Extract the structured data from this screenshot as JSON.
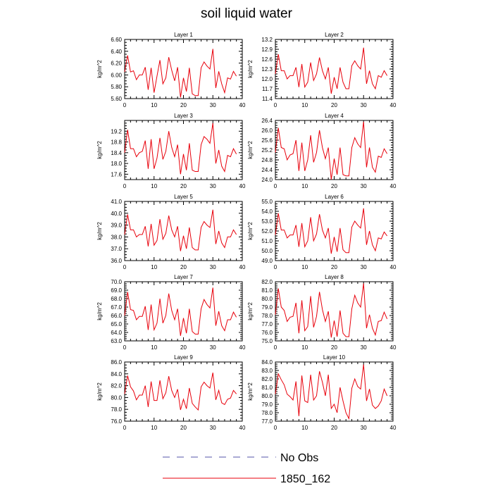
{
  "title": "soil liquid water",
  "legend": {
    "entries": [
      {
        "label": "No Obs",
        "color": "#5555aa",
        "style": "dashed"
      },
      {
        "label": "1850_162",
        "color": "#e8000b",
        "style": "solid"
      }
    ]
  },
  "colors": {
    "line": "#e8000b",
    "noobs": "#5555aa",
    "axis": "#000000"
  },
  "chart_data": [
    {
      "type": "line",
      "title": "Layer 1",
      "ylabel": "kg/m^2",
      "xlim": [
        0,
        40
      ],
      "ylim": [
        5.6,
        6.6
      ],
      "xticks": [
        0,
        10,
        20,
        30,
        40
      ],
      "yticks": [
        5.6,
        5.8,
        6.0,
        6.2,
        6.4,
        6.6
      ],
      "decimals": 2,
      "series": [
        {
          "values": [
            6.05,
            6.33,
            6.05,
            6.07,
            5.92,
            6.0,
            6.0,
            6.13,
            5.75,
            6.12,
            5.7,
            5.98,
            6.25,
            5.85,
            5.95,
            6.3,
            6.08,
            5.9,
            6.13,
            5.62,
            5.95,
            5.72,
            6.12,
            5.68,
            5.65,
            5.65,
            6.12,
            6.22,
            6.15,
            6.1,
            6.44,
            5.78,
            6.06,
            5.85,
            5.7,
            5.95,
            5.93,
            6.06,
            5.98
          ]
        }
      ]
    },
    {
      "type": "line",
      "title": "Layer 2",
      "ylabel": "kg/m^2",
      "xlim": [
        0,
        40
      ],
      "ylim": [
        11.4,
        13.2
      ],
      "xticks": [
        0,
        10,
        20,
        30,
        40
      ],
      "yticks": [
        11.4,
        11.7,
        12.0,
        12.3,
        12.6,
        12.9,
        13.2
      ],
      "decimals": 1,
      "series": [
        {
          "values": [
            12.15,
            12.75,
            12.25,
            12.25,
            12.0,
            12.1,
            12.1,
            12.35,
            11.75,
            12.45,
            11.75,
            11.9,
            12.5,
            11.95,
            12.15,
            12.65,
            12.25,
            12.0,
            12.35,
            11.55,
            12.05,
            11.7,
            12.35,
            11.9,
            11.7,
            11.7,
            12.4,
            12.55,
            12.4,
            12.3,
            12.95,
            11.85,
            12.25,
            11.85,
            11.7,
            12.1,
            12.05,
            12.25,
            12.1
          ]
        }
      ]
    },
    {
      "type": "line",
      "title": "Layer 3",
      "ylabel": "kg/m^2",
      "xlim": [
        0,
        40
      ],
      "ylim": [
        17.4,
        19.6
      ],
      "xticks": [
        0,
        10,
        20,
        30,
        40
      ],
      "yticks": [
        17.6,
        18.0,
        18.4,
        18.8,
        19.2
      ],
      "decimals": 1,
      "series": [
        {
          "values": [
            18.4,
            19.25,
            18.55,
            18.55,
            18.25,
            18.4,
            18.45,
            18.85,
            17.8,
            18.9,
            17.8,
            18.2,
            18.95,
            18.15,
            18.45,
            19.2,
            18.6,
            18.25,
            18.7,
            17.6,
            18.35,
            17.75,
            18.75,
            17.75,
            17.7,
            17.7,
            18.7,
            19.0,
            18.9,
            18.75,
            19.5,
            18.0,
            18.5,
            17.9,
            17.7,
            18.3,
            18.25,
            18.55,
            18.35
          ]
        }
      ]
    },
    {
      "type": "line",
      "title": "Layer 4",
      "ylabel": "kg/m^2",
      "xlim": [
        0,
        40
      ],
      "ylim": [
        24.0,
        26.4
      ],
      "xticks": [
        0,
        10,
        20,
        30,
        40
      ],
      "yticks": [
        24.0,
        24.4,
        24.8,
        25.2,
        25.6,
        26.0,
        26.4
      ],
      "decimals": 1,
      "series": [
        {
          "values": [
            25.1,
            26.1,
            25.3,
            25.25,
            24.8,
            25.0,
            25.05,
            25.6,
            24.35,
            25.5,
            24.35,
            24.8,
            25.8,
            24.7,
            25.1,
            26.0,
            25.3,
            24.85,
            25.3,
            24.0,
            24.85,
            24.2,
            25.3,
            24.2,
            24.15,
            24.15,
            25.3,
            25.7,
            25.45,
            25.3,
            26.35,
            24.5,
            25.3,
            24.5,
            24.3,
            24.95,
            24.9,
            25.25,
            25.05
          ]
        }
      ]
    },
    {
      "type": "line",
      "title": "Layer 5",
      "ylabel": "kg/m^2",
      "xlim": [
        0,
        40
      ],
      "ylim": [
        36.0,
        41.0
      ],
      "xticks": [
        0,
        10,
        20,
        30,
        40
      ],
      "yticks": [
        36.0,
        37.0,
        38.0,
        39.0,
        40.0,
        41.0
      ],
      "decimals": 1,
      "series": [
        {
          "values": [
            38.2,
            39.9,
            38.6,
            38.6,
            38.0,
            38.2,
            38.2,
            38.9,
            37.2,
            39.1,
            37.3,
            37.7,
            39.5,
            37.8,
            38.3,
            39.8,
            38.6,
            38.0,
            38.9,
            36.8,
            38.1,
            37.0,
            38.8,
            37.1,
            36.9,
            36.9,
            38.8,
            39.3,
            39.0,
            38.8,
            40.3,
            37.4,
            38.5,
            37.5,
            37.1,
            38.0,
            38.0,
            38.6,
            38.2
          ]
        }
      ]
    },
    {
      "type": "line",
      "title": "Layer 6",
      "ylabel": "kg/m^2",
      "xlim": [
        0,
        40
      ],
      "ylim": [
        49.0,
        55.0
      ],
      "xticks": [
        0,
        10,
        20,
        30,
        40
      ],
      "yticks": [
        49.0,
        50.0,
        51.0,
        52.0,
        53.0,
        54.0,
        55.0
      ],
      "decimals": 1,
      "series": [
        {
          "values": [
            51.6,
            53.8,
            52.1,
            52.1,
            51.3,
            51.6,
            51.6,
            52.6,
            50.4,
            52.8,
            50.4,
            51.0,
            53.4,
            51.0,
            51.7,
            53.7,
            52.1,
            51.3,
            52.3,
            49.7,
            51.4,
            49.9,
            52.3,
            50.1,
            49.8,
            49.8,
            52.4,
            53.0,
            52.6,
            52.3,
            54.3,
            50.6,
            52.0,
            50.6,
            50.0,
            51.3,
            51.2,
            51.9,
            51.5
          ]
        }
      ]
    },
    {
      "type": "line",
      "title": "Layer 7",
      "ylabel": "kg/m^2",
      "xlim": [
        0,
        40
      ],
      "ylim": [
        63.0,
        70.0
      ],
      "xticks": [
        0,
        10,
        20,
        30,
        40
      ],
      "yticks": [
        63.0,
        64.0,
        65.0,
        66.0,
        67.0,
        68.0,
        69.0,
        70.0
      ],
      "decimals": 1,
      "series": [
        {
          "values": [
            66.0,
            68.8,
            66.7,
            66.6,
            65.5,
            65.9,
            65.9,
            67.1,
            64.3,
            67.3,
            64.3,
            65.1,
            68.0,
            65.1,
            66.0,
            68.6,
            66.6,
            65.5,
            66.8,
            63.6,
            65.7,
            63.9,
            66.8,
            64.1,
            63.8,
            63.8,
            66.8,
            67.9,
            67.3,
            66.9,
            69.3,
            64.8,
            66.5,
            64.8,
            64.2,
            65.5,
            65.5,
            66.4,
            65.8
          ]
        }
      ]
    },
    {
      "type": "line",
      "title": "Layer 8",
      "ylabel": "kg/m^2",
      "xlim": [
        0,
        40
      ],
      "ylim": [
        75.0,
        82.0
      ],
      "xticks": [
        0,
        10,
        20,
        30,
        40
      ],
      "yticks": [
        75.0,
        76.0,
        77.0,
        78.0,
        79.0,
        80.0,
        81.0,
        82.0
      ],
      "decimals": 1,
      "series": [
        {
          "values": [
            78.1,
            81.2,
            79.0,
            78.6,
            77.3,
            77.8,
            77.9,
            79.5,
            75.9,
            79.8,
            76.2,
            76.7,
            80.3,
            76.6,
            77.9,
            80.8,
            78.7,
            77.3,
            78.5,
            75.4,
            77.4,
            75.5,
            78.6,
            75.9,
            75.5,
            75.5,
            78.8,
            80.4,
            79.5,
            79.0,
            81.8,
            76.5,
            78.1,
            76.5,
            75.7,
            77.3,
            77.4,
            78.4,
            77.6
          ]
        }
      ]
    },
    {
      "type": "line",
      "title": "Layer 9",
      "ylabel": "kg/m^2",
      "xlim": [
        0,
        40
      ],
      "ylim": [
        76.0,
        86.0
      ],
      "xticks": [
        0,
        10,
        20,
        30,
        40
      ],
      "yticks": [
        76.0,
        78.0,
        80.0,
        82.0,
        84.0,
        86.0
      ],
      "decimals": 1,
      "series": [
        {
          "values": [
            80.6,
            83.7,
            81.8,
            81.1,
            79.6,
            80.4,
            80.4,
            82.0,
            78.4,
            82.7,
            79.5,
            79.5,
            82.9,
            79.8,
            80.8,
            83.6,
            81.2,
            80.0,
            81.4,
            77.9,
            79.7,
            78.1,
            81.6,
            79.0,
            78.4,
            77.9,
            81.8,
            82.6,
            82.0,
            81.6,
            84.2,
            79.6,
            81.2,
            79.1,
            78.8,
            79.7,
            79.9,
            81.2,
            80.6
          ]
        }
      ]
    },
    {
      "type": "line",
      "title": "Layer 10",
      "ylabel": "kg/m^2",
      "xlim": [
        0,
        40
      ],
      "ylim": [
        77.0,
        84.0
      ],
      "xticks": [
        0,
        10,
        20,
        30,
        40
      ],
      "yticks": [
        77.0,
        78.0,
        79.0,
        80.0,
        81.0,
        82.0,
        83.0,
        84.0
      ],
      "decimals": 1,
      "series": [
        {
          "values": [
            80.2,
            82.6,
            81.9,
            81.3,
            80.2,
            79.9,
            79.5,
            81.7,
            77.6,
            82.4,
            79.4,
            79.2,
            82.5,
            79.5,
            80.0,
            82.9,
            81.6,
            80.0,
            82.5,
            78.5,
            79.0,
            78.0,
            81.0,
            79.4,
            78.0,
            77.3,
            80.9,
            82.0,
            81.1,
            80.8,
            83.7,
            79.4,
            80.8,
            78.9,
            78.5,
            78.8,
            79.4,
            80.8,
            80.0
          ]
        }
      ]
    }
  ]
}
